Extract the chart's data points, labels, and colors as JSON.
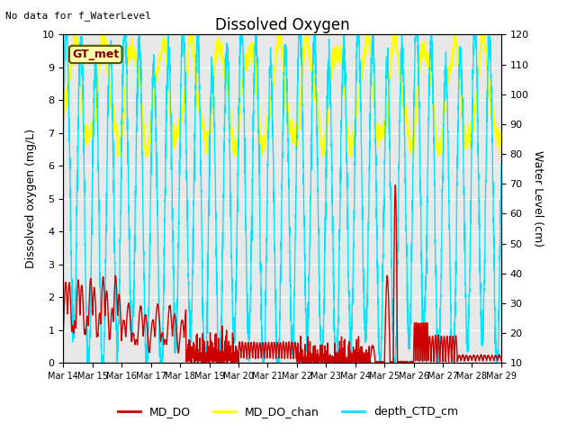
{
  "title": "Dissolved Oxygen",
  "top_left_text": "No data for f_WaterLevel",
  "annotation_box": "GT_met",
  "ylabel_left": "Dissolved oxygen (mg/L)",
  "ylabel_right": "Water Level (cm)",
  "ylim_left": [
    0.0,
    10.0
  ],
  "ylim_right": [
    10,
    120
  ],
  "yticks_left": [
    0.0,
    1.0,
    2.0,
    3.0,
    4.0,
    5.0,
    6.0,
    7.0,
    8.0,
    9.0,
    10.0
  ],
  "yticks_right": [
    10,
    20,
    30,
    40,
    50,
    60,
    70,
    80,
    90,
    100,
    110,
    120
  ],
  "x_tick_labels": [
    "Mar 14",
    "Mar 15",
    "Mar 16",
    "Mar 17",
    "Mar 18",
    "Mar 19",
    "Mar 20",
    "Mar 21",
    "Mar 22",
    "Mar 23",
    "Mar 24",
    "Mar 25",
    "Mar 26",
    "Mar 27",
    "Mar 28",
    "Mar 29"
  ],
  "color_MD_DO": "#cc0000",
  "color_MD_DO_chan": "#ffff00",
  "color_depth_CTD": "#00e5ff",
  "legend_labels": [
    "MD_DO",
    "MD_DO_chan",
    "depth_CTD_cm"
  ],
  "plot_bg_color": "#e8e8e8",
  "grid_color": "#ffffff",
  "lw_red": 1.0,
  "lw_yellow": 1.0,
  "lw_cyan": 1.0
}
